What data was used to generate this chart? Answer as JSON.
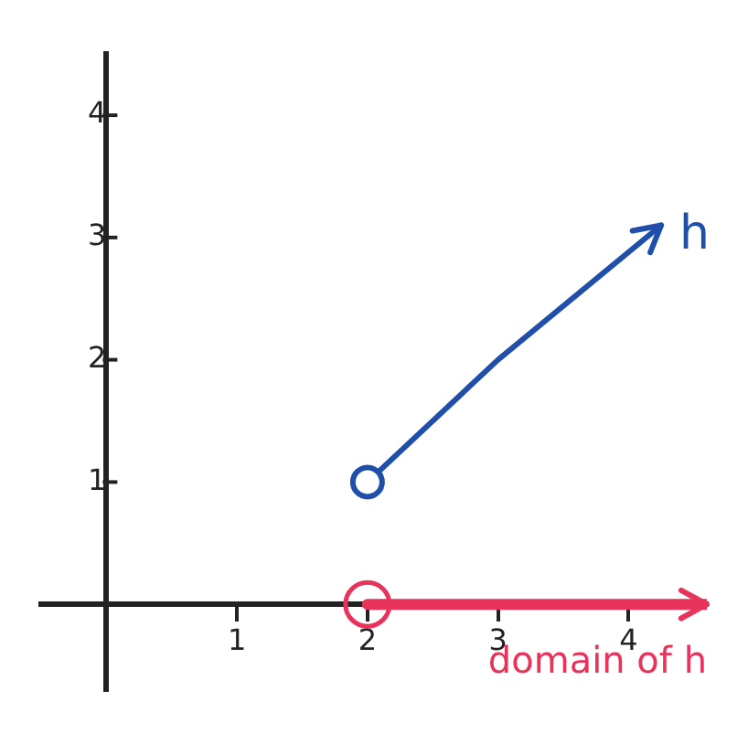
{
  "chart_data": {
    "type": "line",
    "xlim": [
      -0.5,
      4.6
    ],
    "ylim": [
      -0.7,
      4.5
    ],
    "xticks": [
      1,
      2,
      3,
      4
    ],
    "yticks": [
      1,
      2,
      3,
      4
    ],
    "grid": false,
    "series": [
      {
        "name": "h",
        "color": "#1f4fa8",
        "x": [
          2,
          3,
          4.25
        ],
        "values": [
          1,
          2,
          3.1
        ]
      },
      {
        "color": "#e8335a",
        "x": [
          2,
          4.6
        ],
        "values": [
          0,
          0
        ]
      }
    ],
    "annotations": [
      {
        "text": "domain of h",
        "x": 4.6,
        "y": 0
      }
    ]
  }
}
